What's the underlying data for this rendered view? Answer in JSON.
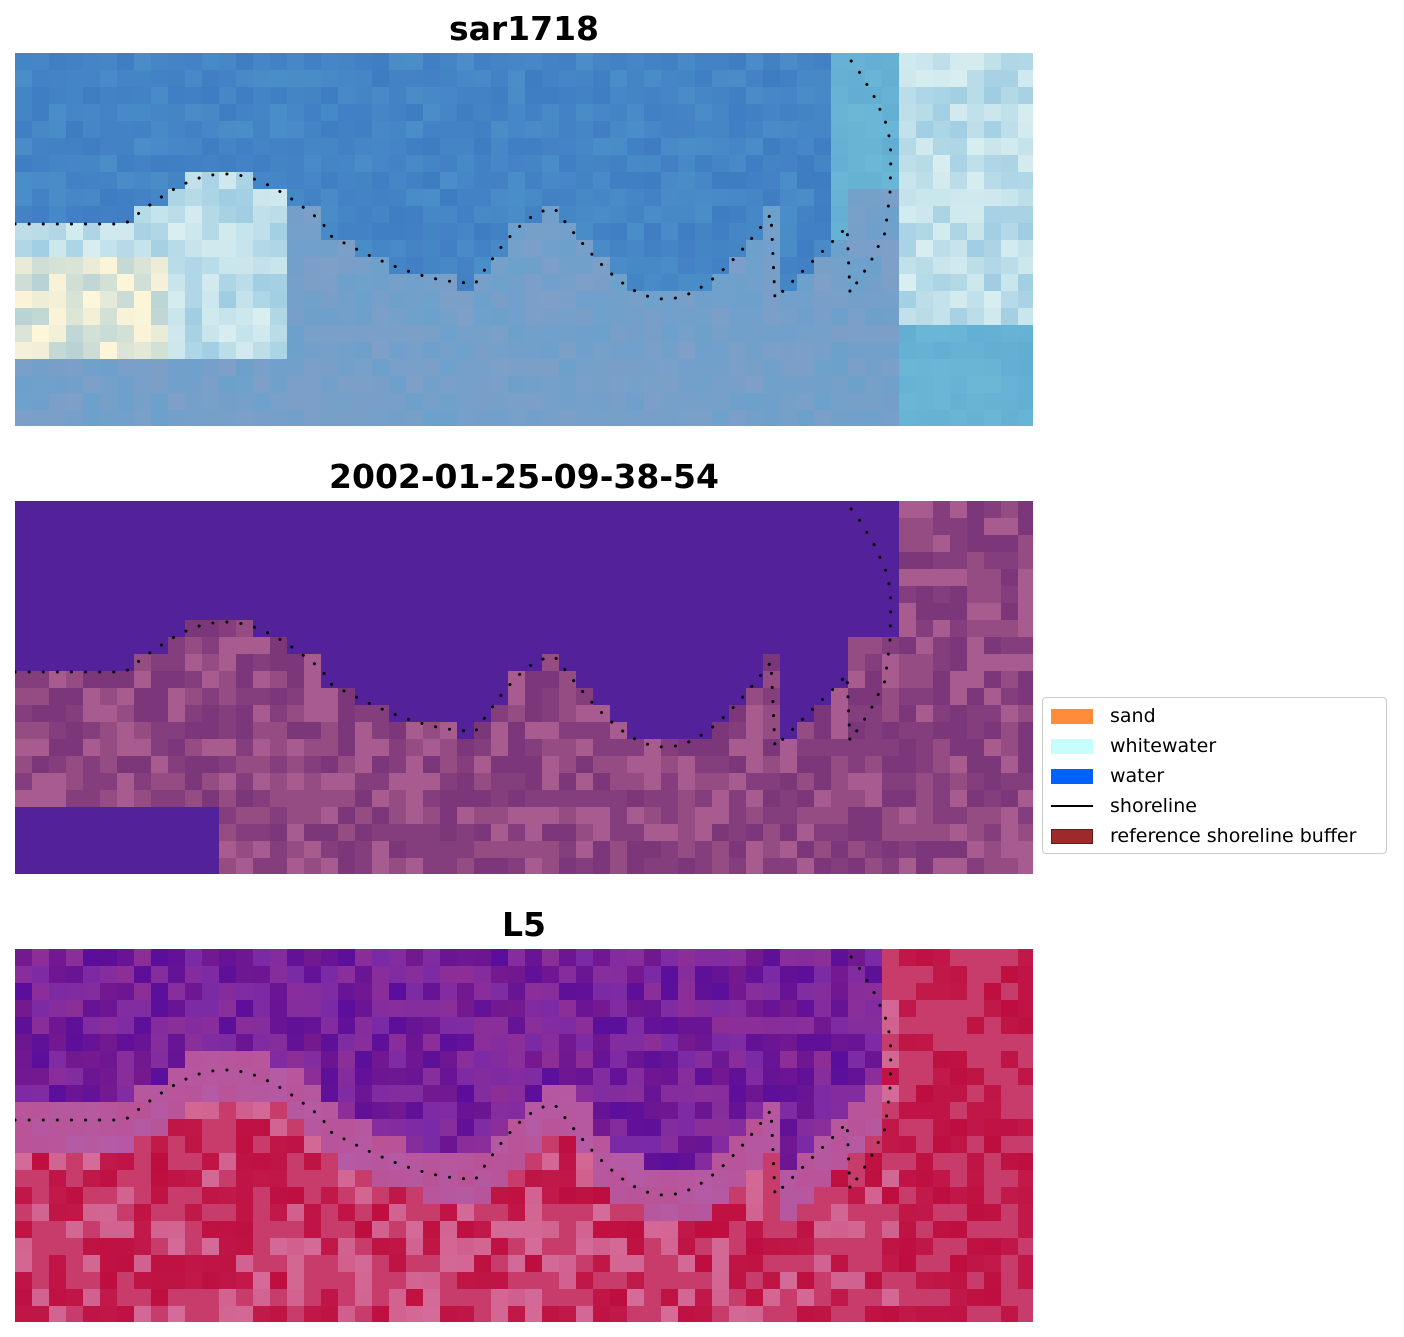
{
  "panels": [
    {
      "title": "sar1718",
      "render": "rgb",
      "colors": [
        "#3f7dc3",
        "#57a3d0",
        "#d8eef0",
        "#fff6d8",
        "#7d9fc8",
        "#6bb7d6",
        "#5593c9"
      ]
    },
    {
      "title": "2002-01-25-09-38-54",
      "render": "classified",
      "water_color": "#53229a",
      "land_colors": [
        "#7b3779",
        "#a65a8a",
        "#c4739e",
        "#8a4282"
      ]
    },
    {
      "title": "L5",
      "render": "index",
      "colors": [
        "#5a0e9b",
        "#7a2aa6",
        "#b55aa4",
        "#c73c6b",
        "#be0e3f",
        "#d46b98"
      ]
    }
  ],
  "legend": {
    "items": [
      {
        "label": "sand",
        "kind": "patch",
        "color": "#ff8c3a"
      },
      {
        "label": "whitewater",
        "kind": "patch",
        "color": "#c8fdfd"
      },
      {
        "label": "water",
        "kind": "patch",
        "color": "#0061ff"
      },
      {
        "label": "shoreline",
        "kind": "line",
        "color": "#000000"
      },
      {
        "label": "reference shoreline buffer",
        "kind": "patch",
        "color": "#9c2a2a",
        "edge": "#6b1818"
      }
    ]
  }
}
